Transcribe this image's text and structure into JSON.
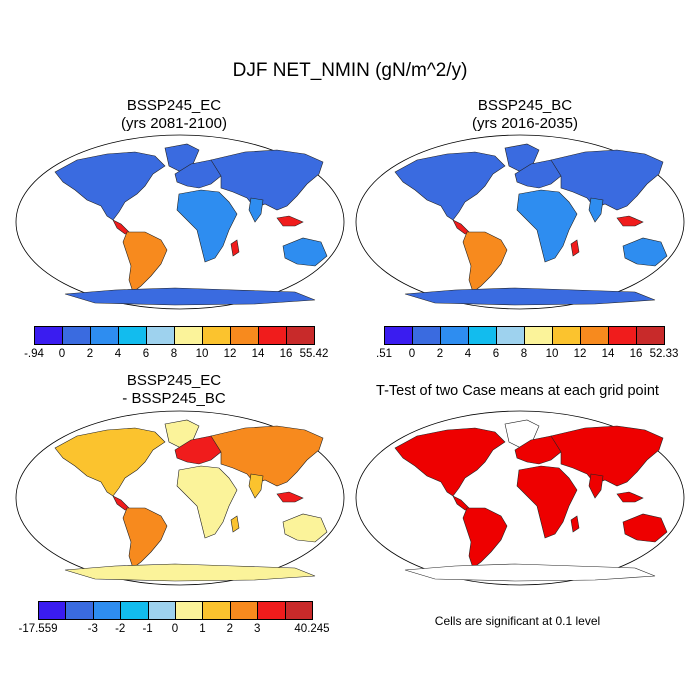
{
  "main_title": "DJF NET_NMIN (gN/m^2/y)",
  "panels": {
    "top_left": {
      "title": "BSSP245_EC",
      "subtitle": "(yrs 2081-2100)"
    },
    "top_right": {
      "title": "BSSP245_BC",
      "subtitle": "(yrs 2016-2035)"
    },
    "bottom_left": {
      "title": "BSSP245_EC",
      "subtitle": "- BSSP245_BC"
    },
    "bottom_right": {
      "title": "T-Test of two Case means at each grid point"
    }
  },
  "colorbars": {
    "top_left": {
      "colors": [
        "#3a1cf0",
        "#3a6be0",
        "#2e8df0",
        "#12bcee",
        "#9ed2ee",
        "#fbf39a",
        "#fbc32e",
        "#f78a1e",
        "#f01c1c",
        "#c82a2a"
      ],
      "labels": [
        "-.94",
        "0",
        "2",
        "4",
        "6",
        "8",
        "10",
        "12",
        "14",
        "16",
        "55.42"
      ]
    },
    "top_right": {
      "colors": [
        "#3a1cf0",
        "#3a6be0",
        "#2e8df0",
        "#12bcee",
        "#9ed2ee",
        "#fbf39a",
        "#fbc32e",
        "#f78a1e",
        "#f01c1c",
        "#c82a2a"
      ],
      "labels": [
        ".51",
        "0",
        "2",
        "4",
        "6",
        "8",
        "10",
        "12",
        "14",
        "16",
        "52.33"
      ]
    },
    "bottom_left": {
      "colors": [
        "#3a1cf0",
        "#3a6be0",
        "#2e8df0",
        "#12bcee",
        "#9ed2ee",
        "#fbf39a",
        "#fbc32e",
        "#f78a1e",
        "#f01c1c",
        "#c82a2a"
      ],
      "labels": [
        "-17.559",
        "",
        "-3",
        "-2",
        "-1",
        "0",
        "1",
        "2",
        "3",
        "",
        "40.245"
      ]
    }
  },
  "note": "Cells are significant at 0.1 level",
  "icons": {
    "map_panels": "world-robinson-map-icon"
  }
}
